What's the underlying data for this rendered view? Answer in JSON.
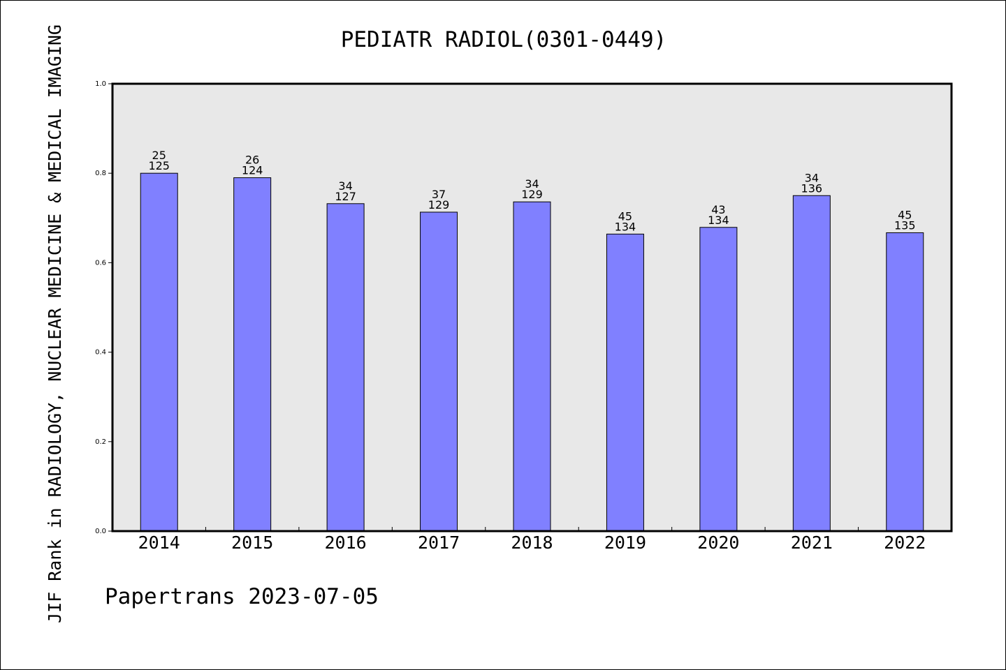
{
  "chart_data": {
    "type": "bar",
    "title": "PEDIATR RADIOL(0301-0449)",
    "ylabel": "JIF Rank in RADIOLOGY, NUCLEAR MEDICINE & MEDICAL IMAGING",
    "xlabel": "",
    "ylim": [
      0,
      1.0
    ],
    "yticks": [
      "0.0",
      "0.2",
      "0.4",
      "0.6",
      "0.8",
      "1.0"
    ],
    "grid": false,
    "categories": [
      "2014",
      "2015",
      "2016",
      "2017",
      "2018",
      "2019",
      "2020",
      "2021",
      "2022"
    ],
    "values": [
      0.8,
      0.79,
      0.732,
      0.713,
      0.736,
      0.664,
      0.679,
      0.75,
      0.667
    ],
    "rank": [
      "25",
      "26",
      "34",
      "37",
      "34",
      "45",
      "43",
      "34",
      "45"
    ],
    "total": [
      "125",
      "124",
      "127",
      "129",
      "129",
      "134",
      "134",
      "136",
      "135"
    ]
  },
  "footer": {
    "credit": "Papertrans 2023-07-05"
  },
  "colors": {
    "bar": "#8080ff",
    "plot_background": "#e8e8e8",
    "axis": "#000000"
  }
}
